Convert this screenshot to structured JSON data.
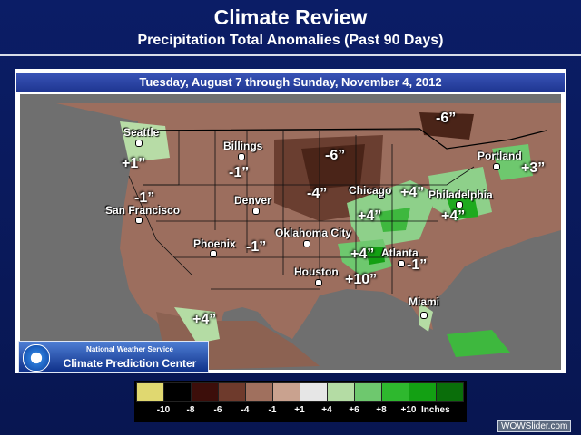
{
  "slide": {
    "title": "Climate Review",
    "subtitle": "Precipitation Total Anomalies (Past 90 Days)",
    "date_range": "Tuesday, August 7 through Sunday, November 4, 2012"
  },
  "cities": {
    "seattle": "Seattle",
    "billings": "Billings",
    "portland": "Portland",
    "chicago": "Chicago",
    "philadelphia": "Philadelphia",
    "denver": "Denver",
    "san_francisco": "San Francisco",
    "oklahoma_city": "Oklahoma City",
    "phoenix": "Phoenix",
    "atlanta": "Atlanta",
    "houston": "Houston",
    "miami": "Miami"
  },
  "anomalies": {
    "ne_canada": "-6”",
    "pacific_nw": "+1”",
    "montana": "-1”",
    "plains_north": "-6”",
    "plains_mid": "-4”",
    "california": "-1”",
    "great_lakes": "+4”",
    "ohio_valley": "+4”",
    "new_england": "+3”",
    "mid_atlantic": "+4”",
    "southwest": "-1”",
    "tennessee": "+4”",
    "georgia": "-1”",
    "gulf_coast": "+10”",
    "baja": "+4”"
  },
  "nws": {
    "line1": "National Weather Service",
    "line2": "Climate Prediction Center",
    "logo_icon": "noaa-logo-icon"
  },
  "legend": {
    "ticks": [
      "-10",
      "-8",
      "-6",
      "-4",
      "-1",
      "+1",
      "+4",
      "+6",
      "+8",
      "+10"
    ],
    "units": "Inches",
    "colors": [
      "#e0d870",
      "#000000",
      "#3c0e0a",
      "#6e3a2c",
      "#a0705e",
      "#c9a28f",
      "#e6e6e6",
      "#b4dca4",
      "#6ec86e",
      "#2eb82e",
      "#13a013",
      "#0a6e0a"
    ]
  },
  "watermark": "WOWSlider.com"
}
